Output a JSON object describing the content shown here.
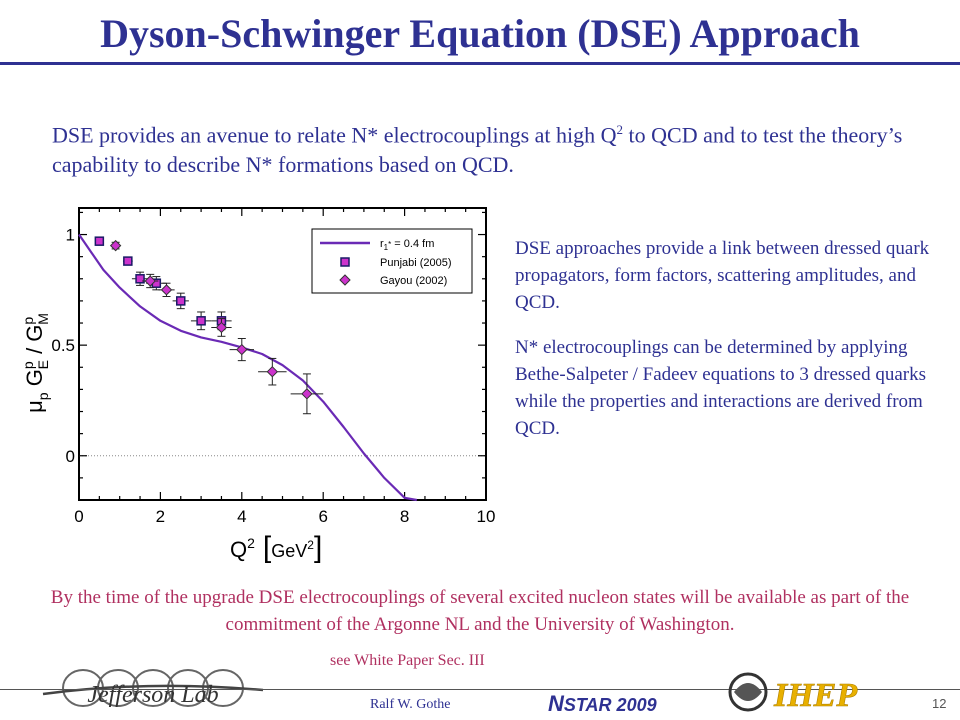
{
  "slide": {
    "title": "Dyson-Schwinger Equation (DSE) Approach",
    "intro_part1": "DSE provides an avenue to relate N* electrocouplings at high Q",
    "intro_sup": "2",
    "intro_part2": " to QCD and to test the theory’s capability to describe N* formations based on QCD.",
    "side_para1": "DSE approaches provide a link between dressed quark propagators,  form factors, scattering amplitudes, and QCD.",
    "side_para2": "N* electrocouplings can be determined by applying Bethe-Salpeter / Fadeev equations to 3 dressed quarks while the properties and interactions are derived from QCD.",
    "bottom_text": "By the time of the upgrade DSE electrocouplings of several excited nucleon states will be available as part of the commitment of the Argonne NL and the University of Washington.",
    "see_text": "see White Paper Sec. III"
  },
  "footer": {
    "author": "Ralf  W. Gothe",
    "conf_initial": "N",
    "conf_rest": "STAR 2009",
    "page_number": "12",
    "logo_left_text": "Jefferson Lab",
    "logo_right_text": "IHEP"
  },
  "colors": {
    "title": "#2e3192",
    "accent": "#b03060",
    "curve": "#6a2ab5",
    "marker": "#cc33cc"
  },
  "chart_data": {
    "type": "scatter",
    "title": "",
    "xlabel_main": "Q",
    "xlabel_sup": "2",
    "xlabel_unit_main": "GeV",
    "xlabel_unit_sup": "2",
    "ylabel_main": "μ",
    "ylabel_sub": "p",
    "ylabel_g1": "G",
    "ylabel_g1_sup": "p",
    "ylabel_g1_sub": "E",
    "ylabel_slash": " / ",
    "ylabel_g2": "G",
    "ylabel_g2_sup": "p",
    "ylabel_g2_sub": "M",
    "xlim": [
      0,
      10
    ],
    "ylim": [
      -0.2,
      1.12
    ],
    "xticks": [
      0,
      2,
      4,
      6,
      8,
      10
    ],
    "xtick_labels": [
      "0",
      "2",
      "4",
      "6",
      "8",
      "10"
    ],
    "yticks": [
      0,
      0.5,
      1
    ],
    "ytick_labels": [
      "0",
      "0.5",
      "1"
    ],
    "zero_line": true,
    "legend_position": "top-right",
    "legend": {
      "curve_main": "r",
      "curve_sub": "1",
      "curve_sub2": "*",
      "curve_rest": " = 0.4 fm"
    },
    "curve": {
      "name": "r1* = 0.4 fm",
      "x": [
        0,
        0.3,
        0.6,
        1.0,
        1.5,
        2.0,
        2.5,
        3.0,
        3.5,
        4.0,
        4.5,
        5.0,
        5.5,
        6.0,
        6.5,
        7.0,
        7.5,
        8.0,
        8.3
      ],
      "y": [
        1.0,
        0.92,
        0.84,
        0.76,
        0.675,
        0.61,
        0.565,
        0.535,
        0.515,
        0.49,
        0.46,
        0.41,
        0.34,
        0.245,
        0.13,
        0.01,
        -0.1,
        -0.19,
        -0.2
      ]
    },
    "series": [
      {
        "name": "Punjabi (2005)",
        "marker": "square",
        "x": [
          0.5,
          1.2,
          1.5,
          1.9,
          2.5,
          3.0,
          3.5
        ],
        "y": [
          0.97,
          0.88,
          0.8,
          0.78,
          0.7,
          0.61,
          0.61
        ],
        "yerr": [
          0.015,
          0.015,
          0.03,
          0.03,
          0.035,
          0.04,
          0.04
        ],
        "xerr": [
          0.1,
          0.12,
          0.2,
          0.25,
          0.2,
          0.25,
          0.25
        ]
      },
      {
        "name": "Gayou (2002)",
        "marker": "diamond",
        "x": [
          0.9,
          1.75,
          2.15,
          3.5,
          4.0,
          4.75,
          5.6
        ],
        "y": [
          0.95,
          0.79,
          0.75,
          0.58,
          0.48,
          0.38,
          0.28
        ],
        "yerr": [
          0.015,
          0.03,
          0.03,
          0.04,
          0.05,
          0.06,
          0.09
        ],
        "xerr": [
          0.1,
          0.2,
          0.2,
          0.25,
          0.3,
          0.35,
          0.4
        ]
      }
    ]
  }
}
